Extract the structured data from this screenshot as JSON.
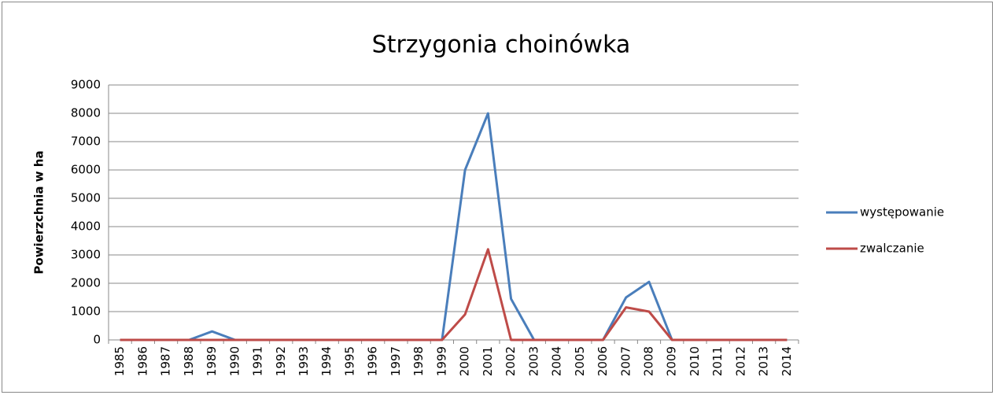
{
  "chart_data": {
    "type": "line",
    "title": "Strzygonia choinówka",
    "y_label": "Powierzchnia w ha",
    "categories": [
      "1985",
      "1986",
      "1987",
      "1988",
      "1989",
      "1990",
      "1991",
      "1992",
      "1993",
      "1994",
      "1995",
      "1996",
      "1997",
      "1998",
      "1999",
      "2000",
      "2001",
      "2002",
      "2003",
      "2004",
      "2005",
      "2006",
      "2007",
      "2008",
      "2009",
      "2010",
      "2011",
      "2012",
      "2013",
      "2014"
    ],
    "series": [
      {
        "name": "występowanie",
        "color": "#4a7ebb",
        "values": [
          0,
          0,
          0,
          0,
          300,
          0,
          0,
          0,
          0,
          0,
          0,
          0,
          0,
          0,
          0,
          6000,
          8000,
          1450,
          0,
          0,
          0,
          0,
          1500,
          2050,
          0,
          0,
          0,
          0,
          0,
          0
        ]
      },
      {
        "name": "zwalczanie",
        "color": "#be4b48",
        "values": [
          0,
          0,
          0,
          0,
          0,
          0,
          0,
          0,
          0,
          0,
          0,
          0,
          0,
          0,
          0,
          900,
          3200,
          0,
          0,
          0,
          0,
          0,
          1150,
          1000,
          0,
          0,
          0,
          0,
          0,
          0
        ]
      }
    ],
    "ylim": [
      0,
      9000
    ],
    "yticks": [
      0,
      1000,
      2000,
      3000,
      4000,
      5000,
      6000,
      7000,
      8000,
      9000
    ],
    "grid": true,
    "legend": "right"
  }
}
